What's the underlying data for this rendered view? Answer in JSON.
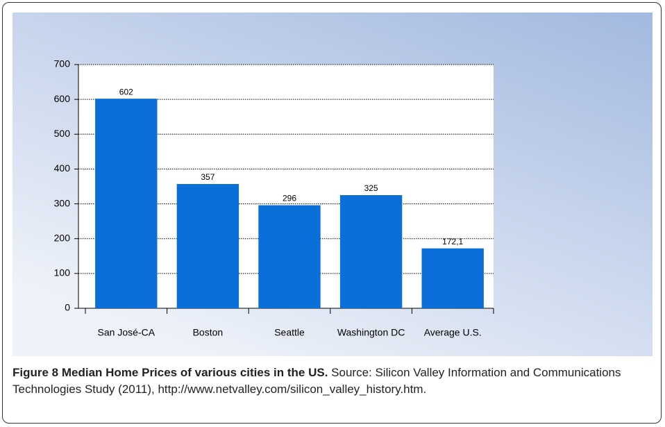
{
  "chart_data": {
    "type": "bar",
    "categories": [
      "San José-CA",
      "Boston",
      "Seattle",
      "Washington DC",
      "Average U.S."
    ],
    "values": [
      602,
      357,
      296,
      325,
      172.1
    ],
    "value_labels": [
      "602",
      "357",
      "296",
      "325",
      "172,1"
    ],
    "color": "#0b6fd9",
    "ylim": [
      0,
      700
    ],
    "yticks": [
      0,
      100,
      200,
      300,
      400,
      500,
      600,
      700
    ],
    "grid": true
  },
  "caption": {
    "label": "Figure 8",
    "title": "Median Home Prices of various cities in the US.",
    "text": "Source: Silicon Valley Information and Communications Technologies Study (2011), http://www.netvalley.com/silicon_valley_history.htm."
  }
}
